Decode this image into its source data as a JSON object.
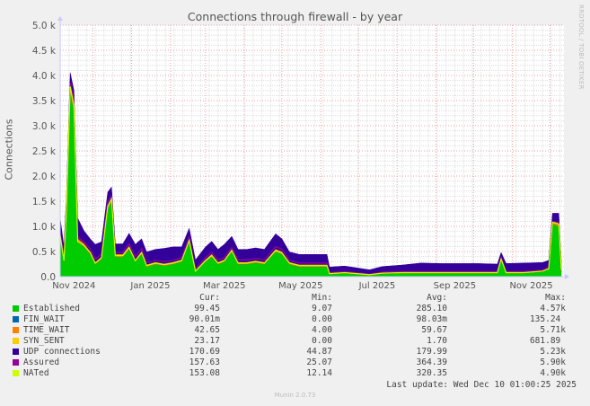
{
  "chart_data": {
    "type": "area",
    "title": "Connections through firewall - by year",
    "ylabel": "Connections",
    "xlim": [
      "2024-11-05",
      "2025-12-10"
    ],
    "ylim": [
      0,
      5000
    ],
    "grid": true,
    "yticks": [
      {
        "value": 0,
        "label": "0.0"
      },
      {
        "value": 500,
        "label": "0.5 k"
      },
      {
        "value": 1000,
        "label": "1.0 k"
      },
      {
        "value": 1500,
        "label": "1.5 k"
      },
      {
        "value": 2000,
        "label": "2.0 k"
      },
      {
        "value": 2500,
        "label": "2.5 k"
      },
      {
        "value": 3000,
        "label": "3.0 k"
      },
      {
        "value": 3500,
        "label": "3.5 k"
      },
      {
        "value": 4000,
        "label": "4.0 k"
      },
      {
        "value": 4500,
        "label": "4.5 k"
      },
      {
        "value": 5000,
        "label": "5.0 k"
      }
    ],
    "xticks": [
      {
        "date": "2024-11-16",
        "label": "Nov 2024"
      },
      {
        "date": "2025-01-16",
        "label": "Jan 2025"
      },
      {
        "date": "2025-03-16",
        "label": "Mar 2025"
      },
      {
        "date": "2025-05-16",
        "label": "May 2025"
      },
      {
        "date": "2025-07-16",
        "label": "Jul 2025"
      },
      {
        "date": "2025-09-16",
        "label": "Sep 2025"
      },
      {
        "date": "2025-11-16",
        "label": "Nov 2025"
      }
    ],
    "x": [
      "2024-11-05",
      "2024-11-08",
      "2024-11-10",
      "2024-11-13",
      "2024-11-16",
      "2024-11-19",
      "2024-11-24",
      "2024-11-29",
      "2024-12-03",
      "2024-12-08",
      "2024-12-13",
      "2024-12-16",
      "2024-12-19",
      "2024-12-25",
      "2024-12-30",
      "2025-01-04",
      "2025-01-09",
      "2025-01-13",
      "2025-01-20",
      "2025-01-27",
      "2025-02-03",
      "2025-02-10",
      "2025-02-16",
      "2025-02-21",
      "2025-03-01",
      "2025-03-06",
      "2025-03-11",
      "2025-03-16",
      "2025-03-22",
      "2025-03-27",
      "2025-04-03",
      "2025-04-10",
      "2025-04-17",
      "2025-04-26",
      "2025-05-01",
      "2025-05-07",
      "2025-05-15",
      "2025-05-25",
      "2025-06-06",
      "2025-06-08",
      "2025-06-20",
      "2025-07-10",
      "2025-07-20",
      "2025-08-05",
      "2025-08-20",
      "2025-09-05",
      "2025-09-20",
      "2025-10-05",
      "2025-10-20",
      "2025-10-23",
      "2025-10-27",
      "2025-11-10",
      "2025-11-25",
      "2025-11-30",
      "2025-12-03",
      "2025-12-08",
      "2025-12-10"
    ],
    "series": [
      {
        "name": "Established",
        "kind": "area",
        "color": "#00cc00",
        "values": [
          800,
          300,
          1300,
          3700,
          3300,
          700,
          600,
          450,
          250,
          350,
          1350,
          1500,
          400,
          400,
          550,
          300,
          450,
          200,
          250,
          220,
          250,
          300,
          700,
          100,
          300,
          400,
          250,
          300,
          500,
          250,
          250,
          280,
          250,
          500,
          450,
          250,
          200,
          200,
          200,
          50,
          70,
          30,
          60,
          70,
          70,
          70,
          70,
          70,
          70,
          330,
          70,
          70,
          100,
          150,
          1050,
          1000,
          100
        ]
      },
      {
        "name": "FIN_WAIT",
        "kind": "stack",
        "color": "#0066b3",
        "values": [
          0.1,
          0.1,
          0.1,
          0.1,
          0.1,
          0.1,
          0.1,
          0.1,
          0.1,
          0.1,
          0.1,
          0.1,
          0.1,
          0.1,
          0.1,
          0.1,
          0.1,
          0.1,
          0.1,
          0.1,
          0.1,
          0.1,
          0.1,
          0.1,
          0.1,
          0.1,
          0.1,
          0.1,
          0.1,
          0.1,
          0.1,
          0.1,
          0.1,
          0.1,
          0.1,
          0.1,
          0.1,
          0.1,
          0.1,
          0.1,
          0.1,
          0.1,
          0.1,
          0.1,
          0.1,
          0.1,
          0.1,
          0.1,
          0.1,
          0.1,
          0.1,
          0.1,
          0.1,
          0.1,
          0.1,
          0.1,
          0.1
        ]
      },
      {
        "name": "TIME_WAIT",
        "kind": "stack",
        "color": "#ff8000",
        "values": [
          60,
          50,
          80,
          100,
          100,
          60,
          60,
          50,
          40,
          40,
          80,
          80,
          50,
          50,
          60,
          40,
          50,
          40,
          40,
          40,
          40,
          40,
          60,
          30,
          40,
          50,
          40,
          40,
          50,
          40,
          40,
          40,
          40,
          50,
          50,
          40,
          40,
          40,
          40,
          20,
          20,
          15,
          20,
          20,
          20,
          20,
          20,
          20,
          20,
          30,
          20,
          20,
          20,
          20,
          40,
          40,
          40
        ]
      },
      {
        "name": "SYN_SENT",
        "kind": "stack",
        "color": "#ffcc00",
        "values": [
          2,
          2,
          2,
          5,
          5,
          2,
          2,
          2,
          2,
          2,
          2,
          2,
          2,
          2,
          2,
          2,
          2,
          2,
          2,
          2,
          2,
          2,
          2,
          2,
          2,
          2,
          2,
          2,
          2,
          2,
          2,
          2,
          2,
          2,
          2,
          2,
          2,
          2,
          2,
          1,
          1,
          1,
          1,
          1,
          1,
          1,
          1,
          1,
          1,
          1,
          1,
          1,
          1,
          5,
          20,
          20,
          20
        ]
      },
      {
        "name": "UDP connections",
        "kind": "stack",
        "color": "#330099",
        "values": [
          300,
          250,
          200,
          250,
          300,
          400,
          250,
          250,
          350,
          300,
          250,
          200,
          200,
          200,
          250,
          300,
          250,
          250,
          250,
          300,
          300,
          250,
          200,
          200,
          250,
          250,
          250,
          300,
          250,
          250,
          250,
          250,
          250,
          300,
          250,
          200,
          200,
          200,
          200,
          120,
          120,
          90,
          120,
          140,
          180,
          170,
          170,
          170,
          160,
          120,
          170,
          180,
          160,
          150,
          150,
          200,
          170
        ]
      },
      {
        "name": "Assured",
        "kind": "line",
        "color": "#990099",
        "values": [
          900,
          380,
          1400,
          3850,
          3500,
          800,
          680,
          550,
          350,
          450,
          1500,
          1600,
          480,
          480,
          650,
          400,
          560,
          280,
          320,
          300,
          320,
          380,
          780,
          150,
          380,
          480,
          330,
          380,
          580,
          330,
          330,
          360,
          330,
          600,
          540,
          320,
          270,
          270,
          270,
          80,
          100,
          50,
          90,
          100,
          100,
          100,
          100,
          100,
          100,
          380,
          100,
          100,
          130,
          180,
          1100,
          1080,
          160
        ]
      },
      {
        "name": "NATed",
        "kind": "line",
        "color": "#ccff00",
        "values": [
          820,
          320,
          1300,
          3780,
          3400,
          700,
          620,
          480,
          270,
          380,
          1400,
          1550,
          420,
          420,
          580,
          320,
          480,
          220,
          270,
          240,
          270,
          320,
          720,
          110,
          320,
          420,
          270,
          320,
          520,
          270,
          270,
          300,
          270,
          520,
          470,
          270,
          220,
          220,
          220,
          60,
          80,
          40,
          70,
          80,
          80,
          80,
          80,
          80,
          80,
          350,
          80,
          80,
          110,
          160,
          1080,
          1050,
          150
        ]
      }
    ]
  },
  "legend": {
    "headers": {
      "cur": "Cur:",
      "min": "Min:",
      "avg": "Avg:",
      "max": "Max:"
    },
    "rows": [
      {
        "label": "Established",
        "color": "#00cc00",
        "cur": "99.45",
        "min": "9.07",
        "avg": "285.10",
        "max": "4.57k"
      },
      {
        "label": "FIN_WAIT",
        "color": "#0066b3",
        "cur": "90.01m",
        "min": "0.00",
        "avg": "98.03m",
        "max": "135.24 "
      },
      {
        "label": "TIME_WAIT",
        "color": "#ff8000",
        "cur": "42.65",
        "min": "4.00",
        "avg": "59.67",
        "max": "5.71k"
      },
      {
        "label": "SYN_SENT",
        "color": "#ffcc00",
        "cur": "23.17",
        "min": "0.00",
        "avg": "1.70",
        "max": "681.89 "
      },
      {
        "label": "UDP connections",
        "color": "#330099",
        "cur": "170.69",
        "min": "44.87",
        "avg": "179.99",
        "max": "5.23k"
      },
      {
        "label": "Assured",
        "color": "#990099",
        "cur": "157.63",
        "min": "25.07",
        "avg": "364.39",
        "max": "5.90k"
      },
      {
        "label": "NATed",
        "color": "#ccff00",
        "cur": "153.08",
        "min": "12.14",
        "avg": "320.35",
        "max": "4.90k"
      }
    ]
  },
  "last_update": "Last update: Wed Dec 10 01:00:25 2025",
  "footer": "Munin 2.0.73",
  "watermark": "RRDTOOL / TOBI OETIKER"
}
